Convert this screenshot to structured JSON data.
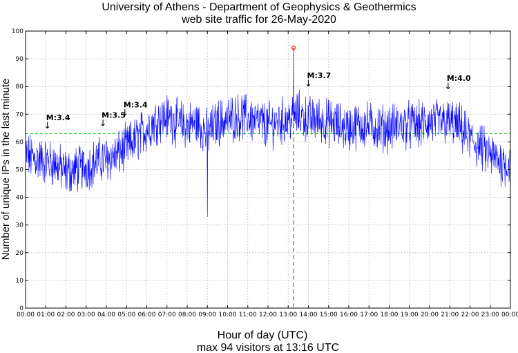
{
  "chart_data": {
    "type": "line",
    "title": "University of Athens - Department of Geophysics & Geothermics",
    "subtitle": "web site traffic for 26-May-2020",
    "xlabel": "Hour of day (UTC)",
    "ylabel": "Number of unique IPs in the last minute",
    "footer": "max 94 visitors at 13:16 UTC",
    "xlim": [
      "00:00",
      "24:00"
    ],
    "ylim": [
      0,
      100
    ],
    "grid": true,
    "x_ticks": [
      "00:00",
      "01:00",
      "02:00",
      "03:00",
      "04:00",
      "05:00",
      "06:00",
      "07:00",
      "08:00",
      "09:00",
      "10:00",
      "11:00",
      "12:00",
      "13:00",
      "14:00",
      "15:00",
      "16:00",
      "17:00",
      "18:00",
      "19:00",
      "20:00",
      "21:00",
      "22:00",
      "23:00",
      "00:00"
    ],
    "y_ticks": [
      "0",
      "10",
      "20",
      "30",
      "40",
      "50",
      "60",
      "70",
      "80",
      "90",
      "100"
    ],
    "colors": {
      "series": "#0000ff",
      "mean_line": "#00cc00",
      "max_marker": "#ff0000"
    },
    "series": [
      {
        "x": [
          "00:00",
          "00:30",
          "01:00",
          "01:30",
          "02:00",
          "02:30",
          "03:00",
          "03:30",
          "04:00",
          "04:30",
          "05:00",
          "05:30",
          "06:00",
          "06:30",
          "07:00",
          "07:30",
          "08:00",
          "08:30",
          "09:00",
          "09:30",
          "10:00",
          "10:30",
          "11:00",
          "11:30",
          "12:00",
          "12:30",
          "13:00",
          "13:30",
          "14:00",
          "14:30",
          "15:00",
          "15:30",
          "16:00",
          "16:30",
          "17:00",
          "17:30",
          "18:00",
          "18:30",
          "19:00",
          "19:30",
          "20:00",
          "20:30",
          "21:00",
          "21:30",
          "22:00",
          "22:30",
          "23:00",
          "23:30",
          "24:00"
        ],
        "y": [
          55,
          54,
          53,
          52,
          49,
          50,
          51,
          53,
          54,
          55,
          58,
          61,
          65,
          68,
          69,
          67,
          66,
          67,
          63,
          67,
          68,
          69,
          69,
          67,
          66,
          67,
          68,
          70,
          68,
          68,
          67,
          66,
          65,
          66,
          66,
          65,
          65,
          66,
          66,
          66,
          67,
          67,
          67,
          65,
          61,
          58,
          55,
          53,
          52
        ]
      }
    ],
    "spikes": [
      {
        "x": "09:00",
        "y": 33
      },
      {
        "x": "13:16",
        "y": 94
      }
    ],
    "mean": 63,
    "max": {
      "value": 94,
      "time": "13:16"
    },
    "annotations": [
      {
        "label": "M:3.4",
        "time": "01:05"
      },
      {
        "label": "M:3.5",
        "time": "03:50"
      },
      {
        "label": "M:3.4",
        "time": "04:55"
      },
      {
        "label": "M:3.7",
        "time": "14:00"
      },
      {
        "label": "M:4.0",
        "time": "20:55"
      }
    ]
  }
}
